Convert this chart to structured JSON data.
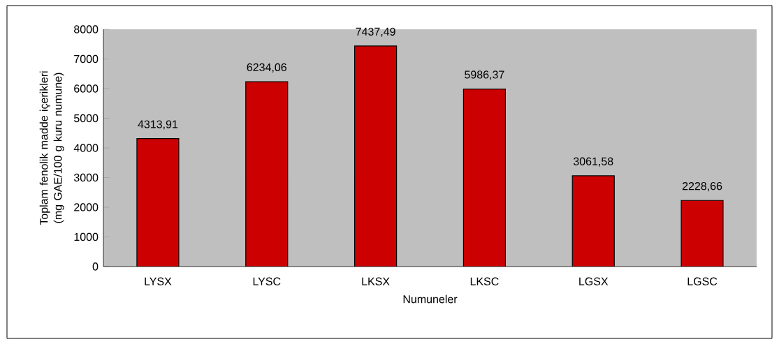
{
  "chart_data": {
    "type": "bar",
    "xlabel": "Numuneler",
    "ylabel": "Toplam fenolik madde içerikleri (mg GAE/100 g kuru numune)",
    "categories": [
      "LYSX",
      "LYSC",
      "LKSX",
      "LKSC",
      "LGSX",
      "LGSC"
    ],
    "values": [
      4313.91,
      6234.06,
      7437.49,
      5986.37,
      3061.58,
      2228.66
    ],
    "value_labels": [
      "4313,91",
      "6234,06",
      "7437,49",
      "5986,37",
      "3061,58",
      "2228,66"
    ],
    "color": "#cc0000",
    "ylim": [
      0,
      8000
    ],
    "yticks": [
      0,
      1000,
      2000,
      3000,
      4000,
      5000,
      6000,
      7000,
      8000
    ],
    "grid": false
  }
}
